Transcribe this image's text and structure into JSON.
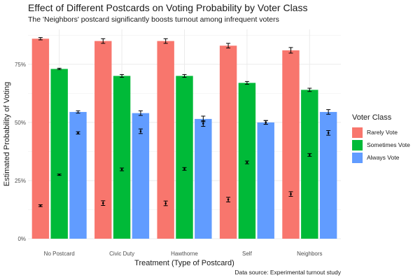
{
  "chart_data": {
    "type": "bar",
    "title": "Effect of Different Postcards on Voting Probability by Voter Class",
    "subtitle": "The 'Neighbors' postcard significantly boosts turnout among infrequent voters",
    "caption": "Data source: Experimental turnout study",
    "xlabel": "Treatment (Type of Postcard)",
    "ylabel": "Estimated Probability of Voting",
    "ylim": [
      0,
      0.9
    ],
    "yticks": [
      0,
      0.25,
      0.5,
      0.75
    ],
    "ytick_labels": [
      "0%",
      "25%",
      "50%",
      "75%"
    ],
    "categories": [
      "No Postcard",
      "Civic Duty",
      "Hawthorne",
      "Self",
      "Neighbors"
    ],
    "legend_title": "Voter Class",
    "legend_position": "right",
    "series": [
      {
        "name": "Rarely Vote",
        "color": "#F8766D",
        "values": [
          0.86,
          0.85,
          0.85,
          0.83,
          0.81
        ],
        "errors": [
          0.005,
          0.01,
          0.01,
          0.01,
          0.012
        ],
        "points": [
          0.142,
          0.153,
          0.152,
          0.168,
          0.192
        ],
        "point_errors": [
          0.004,
          0.01,
          0.01,
          0.01,
          0.01
        ]
      },
      {
        "name": "Sometimes Vote",
        "color": "#00BA38",
        "values": [
          0.73,
          0.7,
          0.7,
          0.67,
          0.64
        ],
        "errors": [
          0.003,
          0.006,
          0.006,
          0.006,
          0.007
        ],
        "points": [
          0.275,
          0.298,
          0.3,
          0.328,
          0.36
        ],
        "point_errors": [
          0.003,
          0.006,
          0.006,
          0.006,
          0.006
        ]
      },
      {
        "name": "Always Vote",
        "color": "#619CFF",
        "values": [
          0.545,
          0.54,
          0.515,
          0.5,
          0.545
        ],
        "errors": [
          0.005,
          0.01,
          0.012,
          0.008,
          0.01
        ],
        "points": [
          0.455,
          0.462,
          0.495,
          0.5,
          0.455
        ],
        "point_errors": [
          0.005,
          0.01,
          0.012,
          0.008,
          0.01
        ]
      }
    ]
  }
}
